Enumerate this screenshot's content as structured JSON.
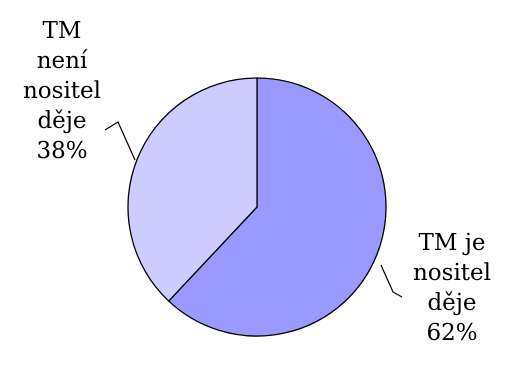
{
  "chart_data": {
    "type": "pie",
    "title": "",
    "start_angle_deg": 0,
    "direction": "clockwise",
    "slices": [
      {
        "label_lines": [
          "TM je",
          "nositel",
          "děje",
          "62%"
        ],
        "value": 62,
        "color": "#9999ff"
      },
      {
        "label_lines": [
          "TM",
          "není",
          "nositel",
          "děje",
          "38%"
        ],
        "value": 38,
        "color": "#ccccff"
      }
    ],
    "legend": "none",
    "grid": false
  }
}
